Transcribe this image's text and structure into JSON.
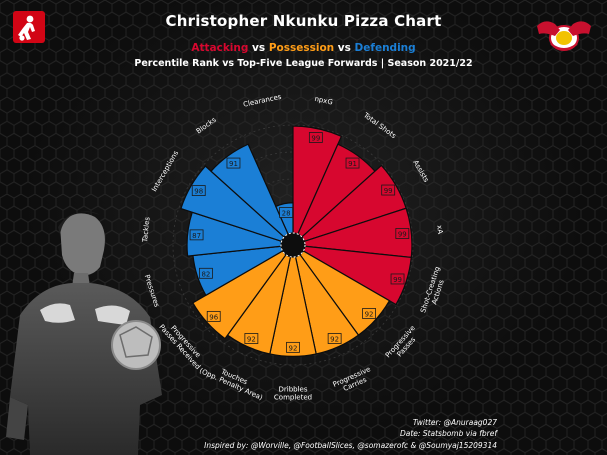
{
  "title": "Christopher Nkunku Pizza Chart",
  "legend": {
    "attacking": "Attacking",
    "possession": "Possession",
    "defending": "Defending",
    "vs1": " vs ",
    "vs2": " vs "
  },
  "subtitle": "Percentile Rank vs Top-Five League Forwards | Season 2021/22",
  "credits": {
    "twitter": "Twitter: @Anuraag027",
    "data": "Date: Statsbomb via fbref",
    "inspired": "Inspired by: @Worville, @FootballSlices, @somazerofc & @Soumyaj15209314"
  },
  "logos": {
    "left": "bundesliga-logo",
    "right": "rb-leipzig-crest"
  },
  "colors": {
    "attacking": "#d7072f",
    "possession": "#ff9d17",
    "defending": "#1b7fd6",
    "background": "#0d0d0d"
  },
  "chart_data": {
    "type": "pie",
    "subtype": "polar-bar",
    "rmax": 100,
    "series": [
      {
        "name": "Attacking",
        "color": "#d7072f"
      },
      {
        "name": "Possession",
        "color": "#ff9d17"
      },
      {
        "name": "Defending",
        "color": "#1b7fd6"
      }
    ],
    "slices": [
      {
        "label": "npxG",
        "value": 99,
        "group": "Attacking"
      },
      {
        "label": "Total Shots",
        "value": 91,
        "group": "Attacking"
      },
      {
        "label": "Assists",
        "value": 99,
        "group": "Attacking"
      },
      {
        "label": "xA",
        "value": 99,
        "group": "Attacking"
      },
      {
        "label": "Shot-Creating\nActions",
        "value": 99,
        "group": "Attacking"
      },
      {
        "label": "Progressive\nPasses",
        "value": 92,
        "group": "Possession"
      },
      {
        "label": "Progressive\nCarries",
        "value": 92,
        "group": "Possession"
      },
      {
        "label": "Dribbles\nCompleted",
        "value": 92,
        "group": "Possession"
      },
      {
        "label": "Touches\n(Opp. Penalty Area)",
        "value": 92,
        "group": "Possession"
      },
      {
        "label": "Progressive\nPasses Received",
        "value": 96,
        "group": "Possession"
      },
      {
        "label": "Pressures",
        "value": 82,
        "group": "Defending"
      },
      {
        "label": "Tackles",
        "value": 87,
        "group": "Defending"
      },
      {
        "label": "Interceptions",
        "value": 98,
        "group": "Defending"
      },
      {
        "label": "Blocks",
        "value": 91,
        "group": "Defending"
      },
      {
        "label": "Clearances",
        "value": 28,
        "group": "Defending"
      }
    ]
  }
}
